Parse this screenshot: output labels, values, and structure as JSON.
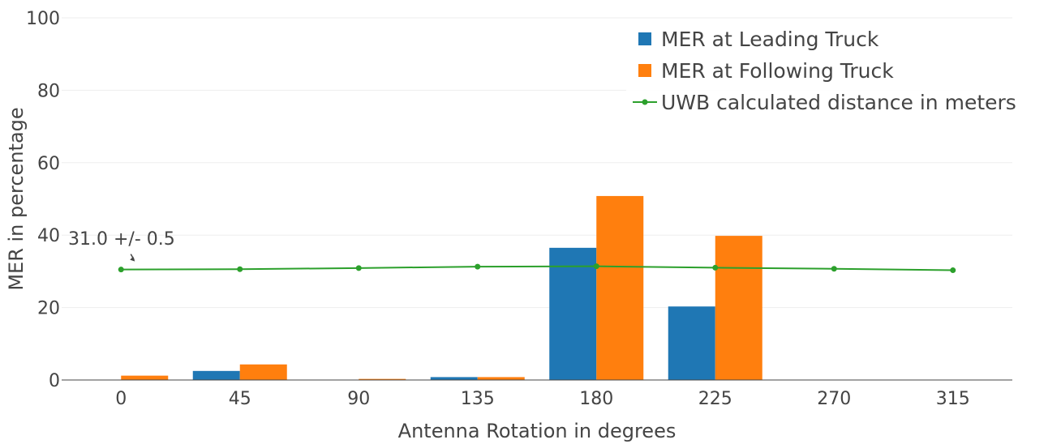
{
  "chart_data": {
    "type": "bar",
    "categories": [
      "0",
      "45",
      "90",
      "135",
      "180",
      "225",
      "270",
      "315"
    ],
    "series": [
      {
        "name": "MER at Leading Truck",
        "type": "bar",
        "color": "#1f77b4",
        "values": [
          0,
          2.5,
          0,
          0.8,
          36.5,
          20.3,
          0,
          0
        ]
      },
      {
        "name": "MER at Following Truck",
        "type": "bar",
        "color": "#ff7f0e",
        "values": [
          1.2,
          4.3,
          0.3,
          0.8,
          50.8,
          39.8,
          0,
          0
        ]
      },
      {
        "name": "UWB calculated distance in meters",
        "type": "line",
        "color": "#2ca02c",
        "values": [
          30.5,
          30.6,
          30.9,
          31.3,
          31.4,
          31.0,
          30.7,
          30.3
        ]
      }
    ],
    "title": "",
    "xlabel": "Antenna Rotation in degrees",
    "ylabel": "MER in percentage",
    "ylim": [
      0,
      100
    ],
    "yticks": [
      0,
      20,
      40,
      60,
      80,
      100
    ],
    "grid": true,
    "legend_position": "top-right",
    "annotation": {
      "text": "31.0 +/- 0.5",
      "category": "0",
      "value": 30.5
    }
  }
}
